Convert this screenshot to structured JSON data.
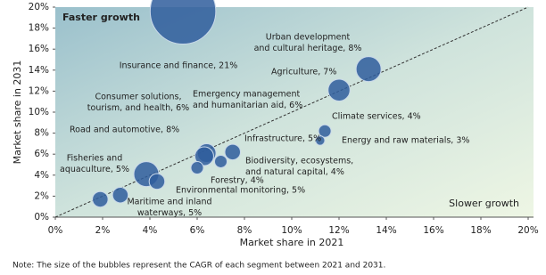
{
  "chart_data": {
    "type": "scatter",
    "xlabel": "Market share in 2021",
    "ylabel": "Market share in 2031",
    "corner_labels": [
      "Faster growth",
      "Slower growth"
    ],
    "note": "Note: The size of the bubbles represent the CAGR of each segment between 2021 and 2031.",
    "xlim": [
      0,
      20
    ],
    "ylim": [
      0,
      20
    ],
    "xticks": [
      {
        "value": 0,
        "label": "0%"
      },
      {
        "value": 2,
        "label": "2%"
      },
      {
        "value": 4,
        "label": "4%"
      },
      {
        "value": 6,
        "label": "6%"
      },
      {
        "value": 8,
        "label": "8%"
      },
      {
        "value": 10,
        "label": "10%"
      },
      {
        "value": 12,
        "label": "12%"
      },
      {
        "value": 14,
        "label": "14%"
      },
      {
        "value": 16,
        "label": "16%"
      },
      {
        "value": 18,
        "label": "18%"
      },
      {
        "value": 20,
        "label": "20%"
      }
    ],
    "yticks": [
      {
        "value": 0,
        "label": "0%"
      },
      {
        "value": 2,
        "label": "2%"
      },
      {
        "value": 4,
        "label": "4%"
      },
      {
        "value": 6,
        "label": "6%"
      },
      {
        "value": 8,
        "label": "8%"
      },
      {
        "value": 10,
        "label": "10%"
      },
      {
        "value": 12,
        "label": "12%"
      },
      {
        "value": 14,
        "label": "14%"
      },
      {
        "value": 16,
        "label": "16%"
      },
      {
        "value": 18,
        "label": "18%"
      },
      {
        "value": 20,
        "label": "20%"
      }
    ],
    "color": "#2f5d9c",
    "labels": [
      [
        "Insurance and finance, 21%"
      ],
      [
        "Urban development",
        "and cultural heritage, 8%"
      ],
      [
        "Agriculture, 7%"
      ],
      [
        "Climate services, 4%"
      ],
      [
        "Energy and raw materials, 3%"
      ],
      [
        "Infrastructure, 5%"
      ],
      [
        "Emergency management",
        "and humanitarian aid, 6%"
      ],
      [
        "Consumer solutions,",
        "tourism, and health, 6%"
      ],
      [
        "Biodiversity, ecosystems,",
        "and natural capital, 4%"
      ],
      [
        "Forestry, 4%"
      ],
      [
        "Road and automotive, 8%"
      ],
      [
        "Environmental monitoring, 5%"
      ],
      [
        "Fisheries and",
        "aquaculture, 5%"
      ],
      [
        "Maritime and inland",
        "waterways, 5%"
      ]
    ],
    "x": [
      5.4,
      13.25,
      12.0,
      11.4,
      11.2,
      7.5,
      6.4,
      6.3,
      7.0,
      6.0,
      3.85,
      4.3,
      1.9,
      2.75
    ],
    "y": [
      19.6,
      14.1,
      12.1,
      8.2,
      7.3,
      6.2,
      6.1,
      5.8,
      5.3,
      4.7,
      4.1,
      3.4,
      1.7,
      2.1
    ],
    "sizes": [
      21,
      8,
      7,
      4,
      3,
      5,
      6,
      6,
      4,
      4,
      8,
      5,
      5,
      5
    ]
  }
}
